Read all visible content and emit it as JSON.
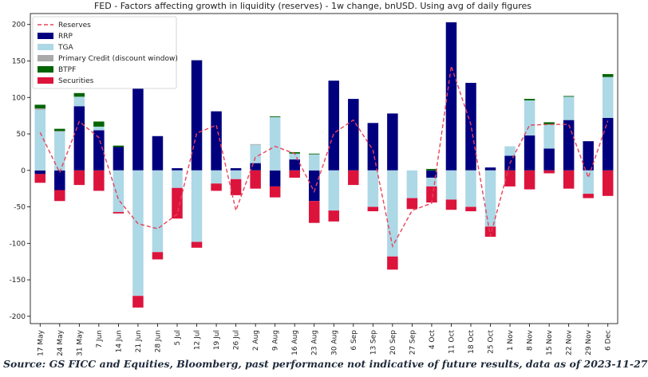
{
  "chart_data": {
    "type": "bar",
    "title": "FED - Factors affecting growth in liquidity (reserves) - 1w change, bnUSD. Using avg of daily figures",
    "xlabel": "",
    "ylabel": "",
    "ylim": [
      -210,
      215
    ],
    "yticks": [
      -200,
      -150,
      -100,
      -50,
      0,
      50,
      100,
      150,
      200
    ],
    "stacked": true,
    "categories": [
      "17 May",
      "24 May",
      "31 May",
      "7 Jun",
      "14 Jun",
      "21 Jun",
      "28 Jun",
      "5 Jul",
      "12 Jul",
      "19 Jul",
      "26 Jul",
      "2 Aug",
      "9 Aug",
      "16 Aug",
      "23 Aug",
      "30 Aug",
      "6 Sep",
      "13 Sep",
      "20 Sep",
      "27 Sep",
      "4 Oct",
      "11 Oct",
      "18 Oct",
      "25 Oct",
      "1 Nov",
      "8 Nov",
      "15 Nov",
      "22 Nov",
      "29 Nov",
      "6 Dec"
    ],
    "series": [
      {
        "name": "RRP",
        "kind": "bar",
        "color": "#00007f",
        "values": [
          -5,
          -27,
          88,
          55,
          32,
          116,
          47,
          3,
          151,
          81,
          3,
          10,
          -22,
          15,
          -42,
          123,
          98,
          65,
          78,
          0,
          -10,
          203,
          120,
          4,
          20,
          48,
          30,
          69,
          40,
          72
        ]
      },
      {
        "name": "TGA",
        "kind": "bar",
        "color": "#add8e6",
        "values": [
          83,
          53,
          13,
          5,
          -57,
          -172,
          -112,
          -24,
          -98,
          -18,
          -12,
          25,
          73,
          8,
          22,
          -55,
          0,
          -50,
          -118,
          -38,
          -12,
          -40,
          -50,
          -77,
          13,
          48,
          33,
          32,
          -32,
          56
        ]
      },
      {
        "name": "Primary Credit (discount window)",
        "kind": "bar",
        "color": "#a9a9a9",
        "values": [
          2,
          1,
          0,
          0,
          0,
          0,
          0,
          0,
          0,
          0,
          0,
          1,
          0,
          0,
          0,
          0,
          0,
          0,
          0,
          0,
          0,
          0,
          0,
          0,
          0,
          0,
          0,
          0,
          0,
          0
        ]
      },
      {
        "name": "BTPF",
        "kind": "bar",
        "color": "#006400",
        "values": [
          5,
          3,
          5,
          7,
          2,
          0,
          0,
          0,
          0,
          0,
          0,
          0,
          1,
          2,
          1,
          0,
          0,
          0,
          0,
          0,
          2,
          0,
          0,
          0,
          0,
          2,
          3,
          1,
          0,
          4
        ]
      },
      {
        "name": "Securities",
        "kind": "bar",
        "color": "#dc143c",
        "values": [
          -12,
          -15,
          -20,
          -28,
          -2,
          -16,
          -10,
          -42,
          -8,
          -10,
          -22,
          -25,
          -15,
          -10,
          -30,
          -15,
          -20,
          -6,
          -18,
          -15,
          -22,
          -14,
          -6,
          -14,
          -22,
          -26,
          -4,
          -25,
          -6,
          -35
        ]
      },
      {
        "name": "Reserves",
        "kind": "line",
        "color": "#e8435a",
        "dash": true,
        "values": [
          52,
          -3,
          67,
          45,
          -40,
          -73,
          -80,
          -60,
          51,
          62,
          -55,
          18,
          33,
          23,
          -29,
          51,
          69,
          28,
          -104,
          -55,
          -45,
          143,
          63,
          -90,
          10,
          62,
          63,
          63,
          -10,
          68
        ]
      }
    ],
    "legend": {
      "placement": "top-left",
      "order": [
        "Reserves",
        "RRP",
        "TGA",
        "Primary Credit (discount window)",
        "BTPF",
        "Securities"
      ]
    },
    "grid": false
  },
  "source": "Source: GS FICC and Equities, Bloomberg, past performance not indicative of future results, data as of 2023-11-27"
}
